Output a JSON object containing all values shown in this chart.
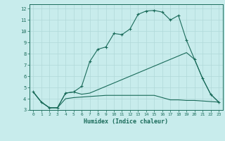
{
  "xlabel": "Humidex (Indice chaleur)",
  "bg_color": "#c8ecec",
  "grid_color": "#b0d8d8",
  "line_color": "#1a6b5a",
  "xlim": [
    -0.5,
    23.5
  ],
  "ylim": [
    3,
    12.4
  ],
  "xticks": [
    0,
    1,
    2,
    3,
    4,
    5,
    6,
    7,
    8,
    9,
    10,
    11,
    12,
    13,
    14,
    15,
    16,
    17,
    18,
    19,
    20,
    21,
    22,
    23
  ],
  "yticks": [
    3,
    4,
    5,
    6,
    7,
    8,
    9,
    10,
    11,
    12
  ],
  "curve1_x": [
    0,
    1,
    2,
    3,
    4,
    5,
    6,
    7,
    8,
    9,
    10,
    11,
    12,
    13,
    14,
    15,
    16,
    17,
    18,
    19,
    20,
    21,
    22,
    23
  ],
  "curve1_y": [
    4.6,
    3.7,
    3.2,
    3.2,
    4.5,
    4.6,
    5.1,
    7.3,
    8.4,
    8.6,
    9.8,
    9.7,
    10.2,
    11.5,
    11.8,
    11.85,
    11.7,
    11.0,
    11.4,
    9.2,
    7.5,
    5.8,
    4.4,
    3.7
  ],
  "curve2_x": [
    0,
    1,
    2,
    3,
    4,
    5,
    6,
    7,
    8,
    9,
    10,
    11,
    12,
    13,
    14,
    15,
    16,
    17,
    18,
    19,
    20,
    21,
    22,
    23
  ],
  "curve2_y": [
    4.6,
    3.7,
    3.2,
    3.2,
    4.5,
    4.6,
    4.4,
    4.5,
    4.8,
    5.1,
    5.4,
    5.7,
    6.0,
    6.3,
    6.6,
    6.9,
    7.2,
    7.5,
    7.8,
    8.1,
    7.5,
    5.8,
    4.4,
    3.7
  ],
  "curve3_x": [
    0,
    1,
    2,
    3,
    4,
    5,
    6,
    7,
    8,
    9,
    10,
    11,
    12,
    13,
    14,
    15,
    16,
    17,
    18,
    19,
    20,
    21,
    22,
    23
  ],
  "curve3_y": [
    4.6,
    3.7,
    3.2,
    3.2,
    4.0,
    4.1,
    4.15,
    4.2,
    4.25,
    4.3,
    4.3,
    4.3,
    4.3,
    4.3,
    4.3,
    4.3,
    4.1,
    3.9,
    3.9,
    3.85,
    3.85,
    3.8,
    3.75,
    3.7
  ]
}
